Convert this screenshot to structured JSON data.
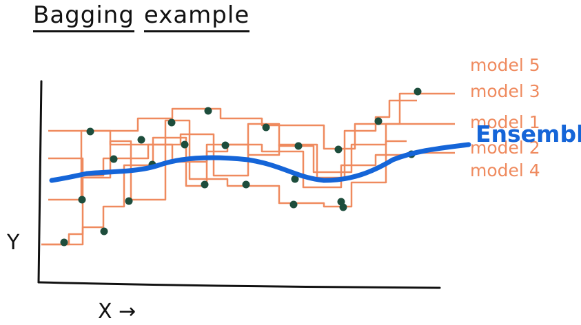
{
  "title": {
    "word1": "Bagging",
    "word2": "example"
  },
  "axes": {
    "x_label": "X →",
    "y_label": "Y"
  },
  "colors": {
    "model": "#ef8a5e",
    "ensemble": "#1565d8",
    "point": "#1d4d3c",
    "axis": "#111111"
  },
  "models": [
    {
      "label": "model 5"
    },
    {
      "label": "model 3"
    },
    {
      "label": "model 1"
    },
    {
      "label": "model 2"
    },
    {
      "label": "model 4"
    }
  ],
  "ensemble_label": "Ensemble"
}
